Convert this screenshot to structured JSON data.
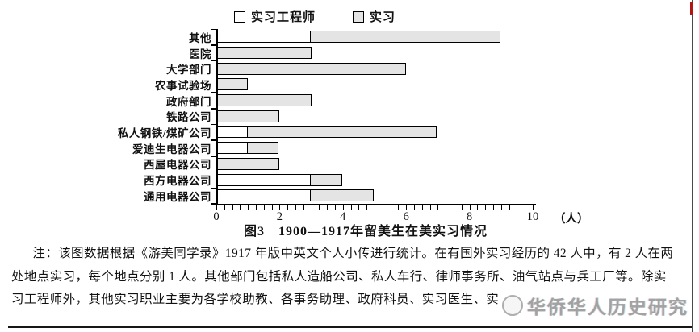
{
  "page": {
    "caption": "图3　1900—1917年留美生在美实习情况",
    "note_lines": [
      "注：该图数据根据《游美同学录》1917 年版中英文个人小传进行统计。在有国外实习经历的 42 人中，有 2 人在两",
      "处地点实习，每个地点分别 1 人。其他部门包括私人造船公司、私人车行、律师事务所、油气站点与兵工厂等。除实",
      "习工程师外，其他实习职业主要为各学校助教、各事务助理、政府科员、实习医生、实"
    ],
    "watermark_text": "华侨华人历史研究"
  },
  "chart_data": {
    "type": "bar",
    "orientation": "horizontal",
    "stacked": true,
    "title": "图3　1900—1917年留美生在美实习情况",
    "categories": [
      "其他",
      "医院",
      "大学部门",
      "农事试验场",
      "政府部门",
      "铁路公司",
      "私人钢铁/煤矿公司",
      "爱迪生电器公司",
      "西屋电器公司",
      "西方电器公司",
      "通用电器公司"
    ],
    "series": [
      {
        "name": "实习工程师",
        "color": "#ffffff",
        "values": [
          3,
          0,
          0,
          0,
          0,
          0,
          1,
          1,
          0,
          3,
          3
        ]
      },
      {
        "name": "实习",
        "color": "#e4e4e4",
        "values": [
          6,
          3,
          6,
          1,
          3,
          2,
          6,
          1,
          2,
          1,
          2
        ]
      }
    ],
    "totals": [
      9,
      3,
      6,
      1,
      3,
      2,
      7,
      2,
      2,
      4,
      5
    ],
    "xlim": [
      0,
      10
    ],
    "x_major_ticks": [
      0,
      2,
      4,
      6,
      8,
      10
    ],
    "x_minor_step": 0.25,
    "x_unit_label": "（人）",
    "legend_position": "top-center",
    "grid": false,
    "bar_border_color": "#000000"
  }
}
